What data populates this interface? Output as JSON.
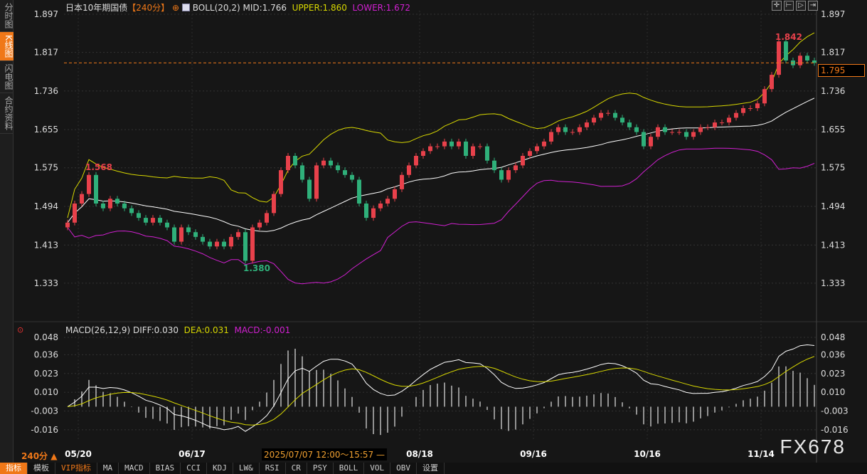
{
  "side_tabs": [
    {
      "label": "分时图",
      "active": false
    },
    {
      "label": "K线图",
      "active": true
    },
    {
      "label": "闪电图",
      "active": false
    },
    {
      "label": "合约资料",
      "active": false
    }
  ],
  "header": {
    "instrument": "日本10年期国债",
    "period": "【240分】",
    "boll": "BOLL(20,2)",
    "mid": "MID:1.766",
    "upper": "UPPER:1.860",
    "lower": "LOWER:1.672"
  },
  "macd_header": {
    "name": "MACD(26,12,9)",
    "diff": "DIFF:0.030",
    "dea": "DEA:0.031",
    "macd": "MACD:-0.001"
  },
  "period_selector": "240分 ▲",
  "crosshair_time": "2025/07/07 12:00～15:57 —",
  "current_price": "1.795",
  "labels": {
    "high": "1.842",
    "low": "1.380",
    "local_high": "1.568"
  },
  "tools": [
    "crosshair-icon",
    "zoom-in-icon",
    "play-icon",
    "move-right-icon"
  ],
  "toolbar": [
    "指标",
    "模板",
    "VIP指标",
    "MA",
    "MACD",
    "BIAS",
    "CCI",
    "KDJ",
    "LW&",
    "RSI",
    "CR",
    "PSY",
    "BOLL",
    "VOL",
    "OBV",
    "设置"
  ],
  "watermark": "FX678",
  "colors": {
    "up": "#e8414b",
    "down": "#2fb07a",
    "mid": "#ffffff",
    "upper": "#d8d800",
    "lower": "#d020d0",
    "accent": "#f07818"
  },
  "chart_data": [
    {
      "type": "candlestick",
      "title": "日本10年期国债",
      "price_ticks": [
        "1.897",
        "1.817",
        "1.736",
        "1.655",
        "1.575",
        "1.494",
        "1.413",
        "1.333"
      ],
      "ylim": [
        1.29,
        1.92
      ],
      "x_ticks": [
        "05/20",
        "06/17",
        "08/18",
        "09/16",
        "10/16",
        "11/14"
      ],
      "close": [
        1.46,
        1.5,
        1.52,
        1.56,
        1.5,
        1.49,
        1.51,
        1.5,
        1.49,
        1.48,
        1.47,
        1.46,
        1.47,
        1.46,
        1.45,
        1.42,
        1.45,
        1.44,
        1.43,
        1.42,
        1.41,
        1.42,
        1.41,
        1.43,
        1.44,
        1.38,
        1.45,
        1.46,
        1.48,
        1.52,
        1.57,
        1.6,
        1.58,
        1.55,
        1.51,
        1.58,
        1.59,
        1.58,
        1.57,
        1.56,
        1.55,
        1.5,
        1.47,
        1.49,
        1.5,
        1.51,
        1.53,
        1.56,
        1.58,
        1.6,
        1.61,
        1.62,
        1.62,
        1.63,
        1.62,
        1.63,
        1.6,
        1.62,
        1.62,
        1.59,
        1.57,
        1.55,
        1.57,
        1.58,
        1.6,
        1.61,
        1.62,
        1.63,
        1.65,
        1.66,
        1.65,
        1.65,
        1.66,
        1.67,
        1.68,
        1.69,
        1.69,
        1.68,
        1.67,
        1.66,
        1.65,
        1.62,
        1.64,
        1.66,
        1.65,
        1.65,
        1.65,
        1.64,
        1.65,
        1.66,
        1.66,
        1.67,
        1.67,
        1.68,
        1.69,
        1.7,
        1.7,
        1.71,
        1.74,
        1.77,
        1.84,
        1.8,
        1.79,
        1.81,
        1.8,
        1.795
      ]
    },
    {
      "type": "macd",
      "ticks": [
        "0.048",
        "0.036",
        "0.023",
        "0.010",
        "-0.003",
        "-0.016"
      ],
      "ylim": [
        -0.02,
        0.05
      ]
    }
  ]
}
